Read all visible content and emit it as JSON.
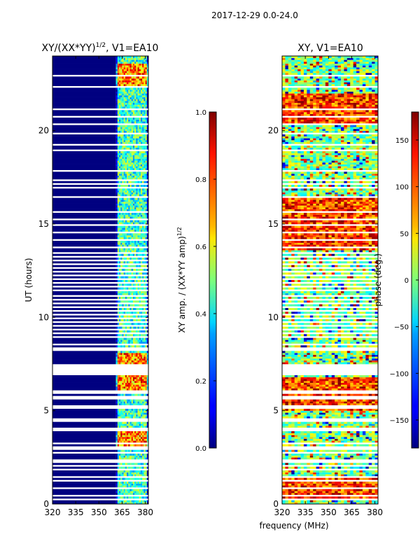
{
  "suptitle": "2017-12-29 0.0-24.0",
  "shared_xlabel": "frequency (MHz)",
  "colormap": "jet",
  "chart_data": [
    {
      "type": "heatmap",
      "title": "XY/(XX*YY)",
      "title_superscript": "1/2",
      "title_suffix": ", V1=EA10",
      "xlabel": "",
      "ylabel": "UT (hours)",
      "xlim": [
        320,
        382
      ],
      "ylim": [
        0,
        24
      ],
      "xticks": [
        320,
        335,
        350,
        365,
        380
      ],
      "yticks": [
        0,
        5,
        10,
        15,
        20
      ],
      "colorbar": {
        "label": "XY amp. / (XX*YY amp)",
        "label_superscript": "1/2",
        "range": [
          0.0,
          1.0
        ],
        "ticks": [
          0.0,
          0.2,
          0.4,
          0.6,
          0.8,
          1.0
        ],
        "tick_labels": [
          "0.0",
          "0.2",
          "0.4",
          "0.6",
          "0.8",
          "1.0"
        ]
      },
      "background_value": 0.0,
      "high_value_hours": [
        [
          3.0,
          3.9
        ],
        [
          6.1,
          6.9
        ],
        [
          7.5,
          8.1
        ],
        [
          22.4,
          23.6
        ]
      ],
      "active_band_mhz": [
        361,
        382
      ],
      "dense_band_mhz": [
        [
          362.5,
          366.5
        ],
        [
          367.5,
          371.5
        ],
        [
          372.5,
          376.5
        ],
        [
          377.5,
          381.0
        ]
      ],
      "notes": "Normalized cross-amplitude; most of band ~0, strong values near 362-381 MHz"
    },
    {
      "type": "heatmap",
      "title": "XY, V1=EA10",
      "xlabel": "",
      "ylabel": "",
      "xlim": [
        320,
        382
      ],
      "ylim": [
        0,
        24
      ],
      "xticks": [
        320,
        335,
        350,
        365,
        380
      ],
      "yticks": [
        0,
        5,
        10,
        15,
        20
      ],
      "colorbar": {
        "label": "phase (deg.)",
        "range": [
          -180,
          180
        ],
        "ticks": [
          -150,
          -100,
          -50,
          0,
          50,
          100,
          150
        ],
        "tick_labels": [
          "−150",
          "−100",
          "−50",
          "0",
          "50",
          "100",
          "150"
        ]
      },
      "red_phase_hours": [
        [
          13.6,
          16.4
        ],
        [
          20.3,
          22.0
        ],
        [
          0.2,
          1.5
        ],
        [
          5.0,
          6.8
        ]
      ],
      "notes": "Cross-correlation phase, noisy across band"
    }
  ],
  "flagged_hours": [
    0.3,
    0.45,
    0.9,
    1.3,
    1.45,
    1.85,
    2.05,
    2.25,
    2.4,
    2.7,
    3.0,
    3.3,
    3.95,
    4.1,
    4.4,
    4.6,
    5.2,
    5.7,
    6.0,
    7.0,
    7.2,
    7.4,
    8.3,
    8.4,
    8.6,
    8.95,
    9.0,
    9.2,
    9.4,
    9.6,
    9.8,
    10.0,
    10.2,
    10.4,
    10.6,
    10.8,
    11.0,
    11.2,
    11.5,
    11.7,
    11.9,
    12.1,
    12.3,
    12.5,
    12.7,
    12.9,
    13.1,
    13.3,
    13.5,
    13.8,
    14.2,
    14.6,
    15.0,
    15.3,
    15.7,
    16.1,
    16.5,
    16.8,
    17.0,
    17.2,
    17.4,
    17.6,
    17.9,
    18.1,
    18.3,
    18.6,
    18.8,
    19.0,
    19.3,
    19.6,
    19.85,
    20.1,
    20.4,
    20.8,
    21.2,
    21.6,
    22.1,
    22.4,
    22.95
  ]
}
